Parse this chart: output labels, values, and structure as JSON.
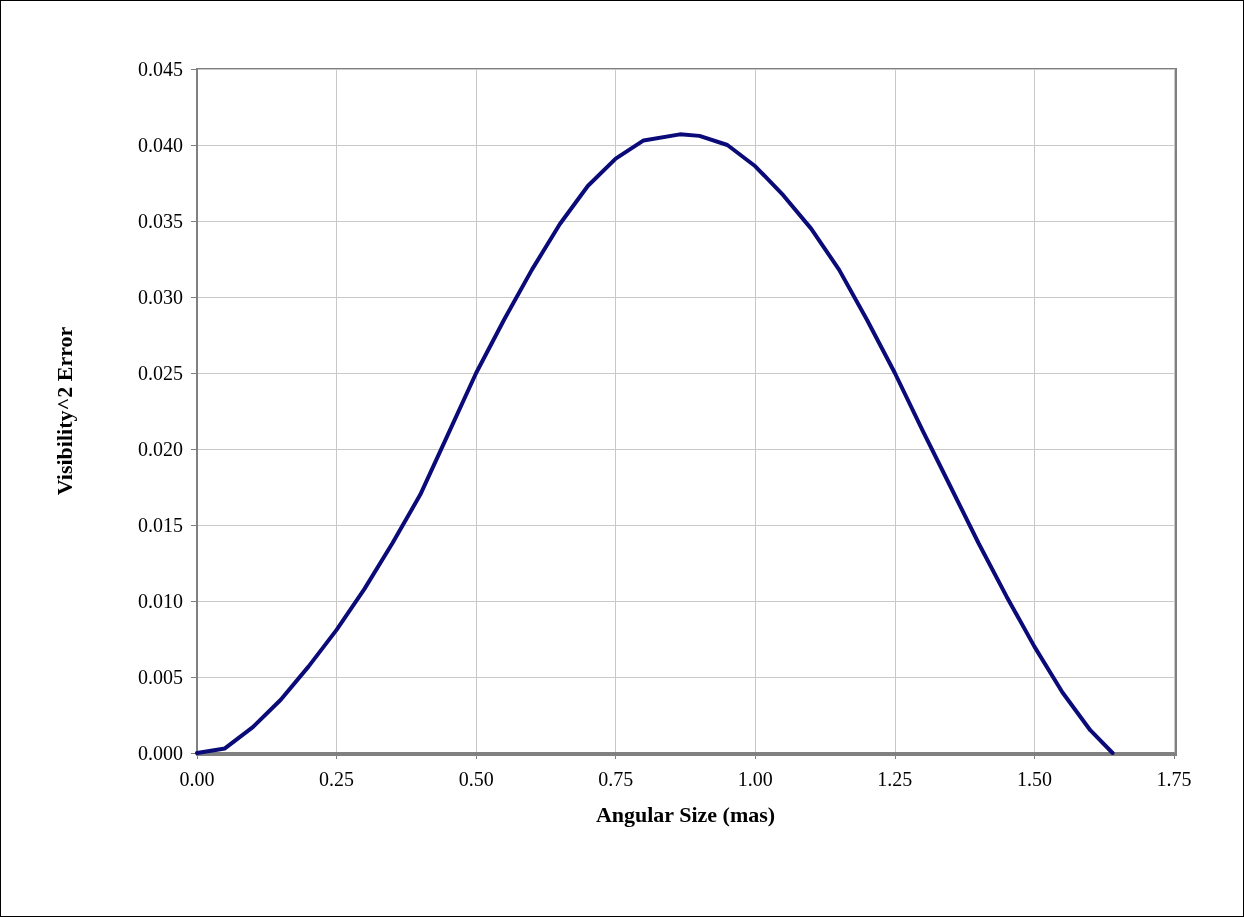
{
  "chart_data": {
    "type": "line",
    "xlabel": "Angular Size (mas)",
    "ylabel": "Visibility^2 Error",
    "x": [
      0,
      0.05,
      0.1,
      0.15,
      0.2,
      0.25,
      0.3,
      0.35,
      0.4,
      0.45,
      0.5,
      0.55,
      0.6,
      0.65,
      0.7,
      0.75,
      0.8,
      0.865,
      0.9,
      0.95,
      1.0,
      1.05,
      1.1,
      1.15,
      1.2,
      1.25,
      1.3,
      1.35,
      1.4,
      1.45,
      1.5,
      1.55,
      1.6,
      1.64
    ],
    "series": [
      {
        "color": "#0a0a78",
        "values": [
          0,
          0.0003,
          0.0017,
          0.0035,
          0.0057,
          0.0081,
          0.0108,
          0.0138,
          0.017,
          0.021,
          0.025,
          0.0285,
          0.0318,
          0.0348,
          0.0373,
          0.0391,
          0.0403,
          0.0407,
          0.0406,
          0.04,
          0.0386,
          0.0367,
          0.0345,
          0.0318,
          0.0285,
          0.025,
          0.0212,
          0.0175,
          0.0138,
          0.0103,
          0.007,
          0.004,
          0.0015,
          0
        ]
      }
    ],
    "xlim": [
      0,
      1.75
    ],
    "xticks": [
      {
        "value": 0,
        "label": "0.00"
      },
      {
        "value": 0.25,
        "label": "0.25"
      },
      {
        "value": 0.5,
        "label": "0.50"
      },
      {
        "value": 0.75,
        "label": "0.75"
      },
      {
        "value": 1,
        "label": "1.00"
      },
      {
        "value": 1.25,
        "label": "1.25"
      },
      {
        "value": 1.5,
        "label": "1.50"
      },
      {
        "value": 1.75,
        "label": "1.75"
      }
    ],
    "ylim": [
      0,
      0.045
    ],
    "yticks": [
      {
        "value": 0,
        "label": "0.000"
      },
      {
        "value": 0.005,
        "label": "0.005"
      },
      {
        "value": 0.01,
        "label": "0.010"
      },
      {
        "value": 0.015,
        "label": "0.015"
      },
      {
        "value": 0.02,
        "label": "0.020"
      },
      {
        "value": 0.025,
        "label": "0.025"
      },
      {
        "value": 0.03,
        "label": "0.030"
      },
      {
        "value": 0.035,
        "label": "0.035"
      },
      {
        "value": 0.04,
        "label": "0.040"
      },
      {
        "value": 0.045,
        "label": "0.045"
      }
    ],
    "grid": true,
    "marker": "none",
    "line_style": "solid"
  }
}
